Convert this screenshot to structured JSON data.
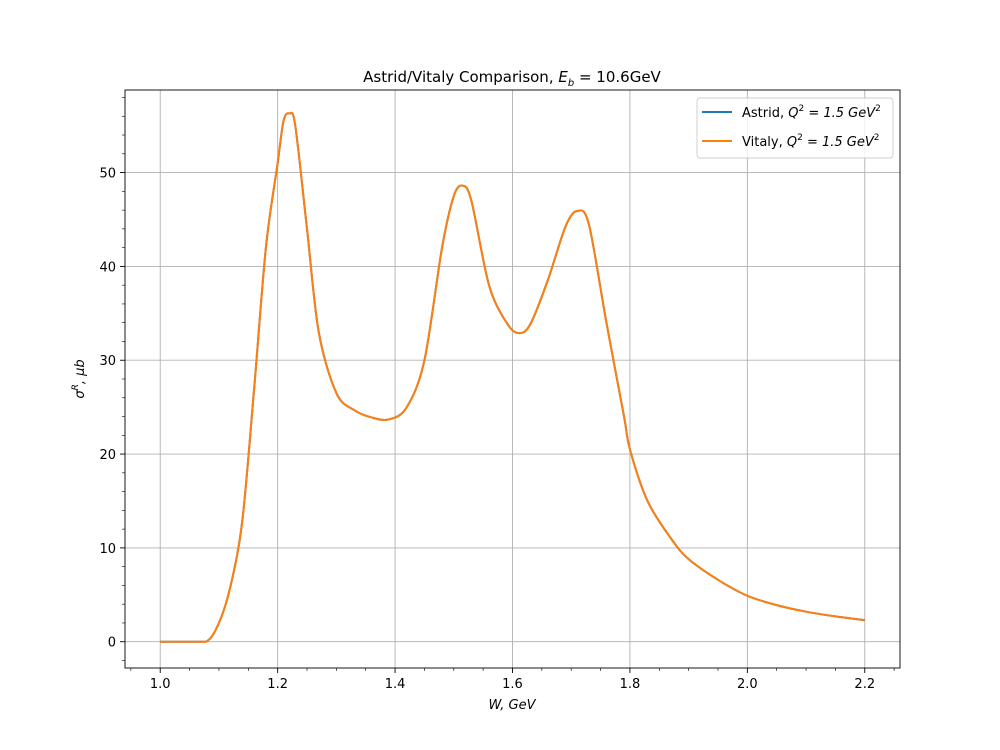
{
  "chart_data": {
    "type": "line",
    "title": "Astrid/Vitaly Comparison, E_b = 10.6GeV",
    "title_parts": {
      "main": "Astrid/Vitaly Comparison, ",
      "sym": "E",
      "sub": "b",
      "rest": " = 10.6GeV"
    },
    "xlabel": "W, GeV",
    "ylabel": "σ^R, μb",
    "ylabel_parts": {
      "main": "σ",
      "sup": "R",
      "rest": ", μb"
    },
    "xlim": [
      0.94,
      2.26
    ],
    "ylim": [
      -2.8,
      58.8
    ],
    "xticks": [
      1.0,
      1.2,
      1.4,
      1.6,
      1.8,
      2.0,
      2.2
    ],
    "xtick_labels": [
      "1.0",
      "1.2",
      "1.4",
      "1.6",
      "1.8",
      "2.0",
      "2.2"
    ],
    "yticks": [
      0,
      10,
      20,
      30,
      40,
      50
    ],
    "ytick_labels": [
      "0",
      "10",
      "20",
      "30",
      "40",
      "50"
    ],
    "grid": true,
    "legend_position": "top-right",
    "series": [
      {
        "name": "Astrid, Q^2 = 1.5 GeV^2",
        "name_parts": {
          "main": "Astrid, ",
          "sym": "Q",
          "sup": "2",
          "eq": " = 1.5 GeV",
          "sup2": "2"
        },
        "color": "#1f77b4",
        "x": [
          1.0,
          1.04,
          1.078,
          1.1,
          1.12,
          1.14,
          1.16,
          1.18,
          1.2,
          1.21,
          1.22,
          1.23,
          1.25,
          1.27,
          1.3,
          1.33,
          1.36,
          1.39,
          1.42,
          1.45,
          1.48,
          1.5,
          1.515,
          1.53,
          1.56,
          1.59,
          1.61,
          1.63,
          1.66,
          1.69,
          1.71,
          1.73,
          1.76,
          1.79,
          1.8,
          1.83,
          1.87,
          1.9,
          1.95,
          2.0,
          2.05,
          2.1,
          2.15,
          2.2
        ],
        "y": [
          0,
          0,
          0,
          2,
          6,
          13,
          27,
          42,
          51,
          55.5,
          56.3,
          55,
          44,
          33,
          26.5,
          24.7,
          23.9,
          23.7,
          25,
          30,
          42,
          47.5,
          48.6,
          47,
          38,
          34,
          32.9,
          33.8,
          38.5,
          44.2,
          45.9,
          44.5,
          34,
          24,
          20.5,
          15,
          11,
          8.8,
          6.6,
          4.9,
          3.9,
          3.2,
          2.7,
          2.3
        ]
      },
      {
        "name": "Vitaly, Q^2 = 1.5 GeV^2",
        "name_parts": {
          "main": "Vitaly, ",
          "sym": "Q",
          "sup": "2",
          "eq": " = 1.5 GeV",
          "sup2": "2"
        },
        "color": "#ff7f0e",
        "x": [
          1.0,
          1.04,
          1.078,
          1.1,
          1.12,
          1.14,
          1.16,
          1.18,
          1.2,
          1.21,
          1.22,
          1.23,
          1.25,
          1.27,
          1.3,
          1.33,
          1.36,
          1.39,
          1.42,
          1.45,
          1.48,
          1.5,
          1.515,
          1.53,
          1.56,
          1.59,
          1.61,
          1.63,
          1.66,
          1.69,
          1.71,
          1.73,
          1.76,
          1.79,
          1.8,
          1.83,
          1.87,
          1.9,
          1.95,
          2.0,
          2.05,
          2.1,
          2.15,
          2.2
        ],
        "y": [
          0,
          0,
          0,
          2,
          6,
          13,
          27,
          42,
          51,
          55.5,
          56.3,
          55,
          44,
          33,
          26.5,
          24.7,
          23.9,
          23.7,
          25,
          30,
          42,
          47.5,
          48.6,
          47,
          38,
          34,
          32.9,
          33.8,
          38.5,
          44.2,
          45.9,
          44.5,
          34,
          24,
          20.5,
          15,
          11,
          8.8,
          6.6,
          4.9,
          3.9,
          3.2,
          2.7,
          2.3
        ]
      }
    ]
  }
}
